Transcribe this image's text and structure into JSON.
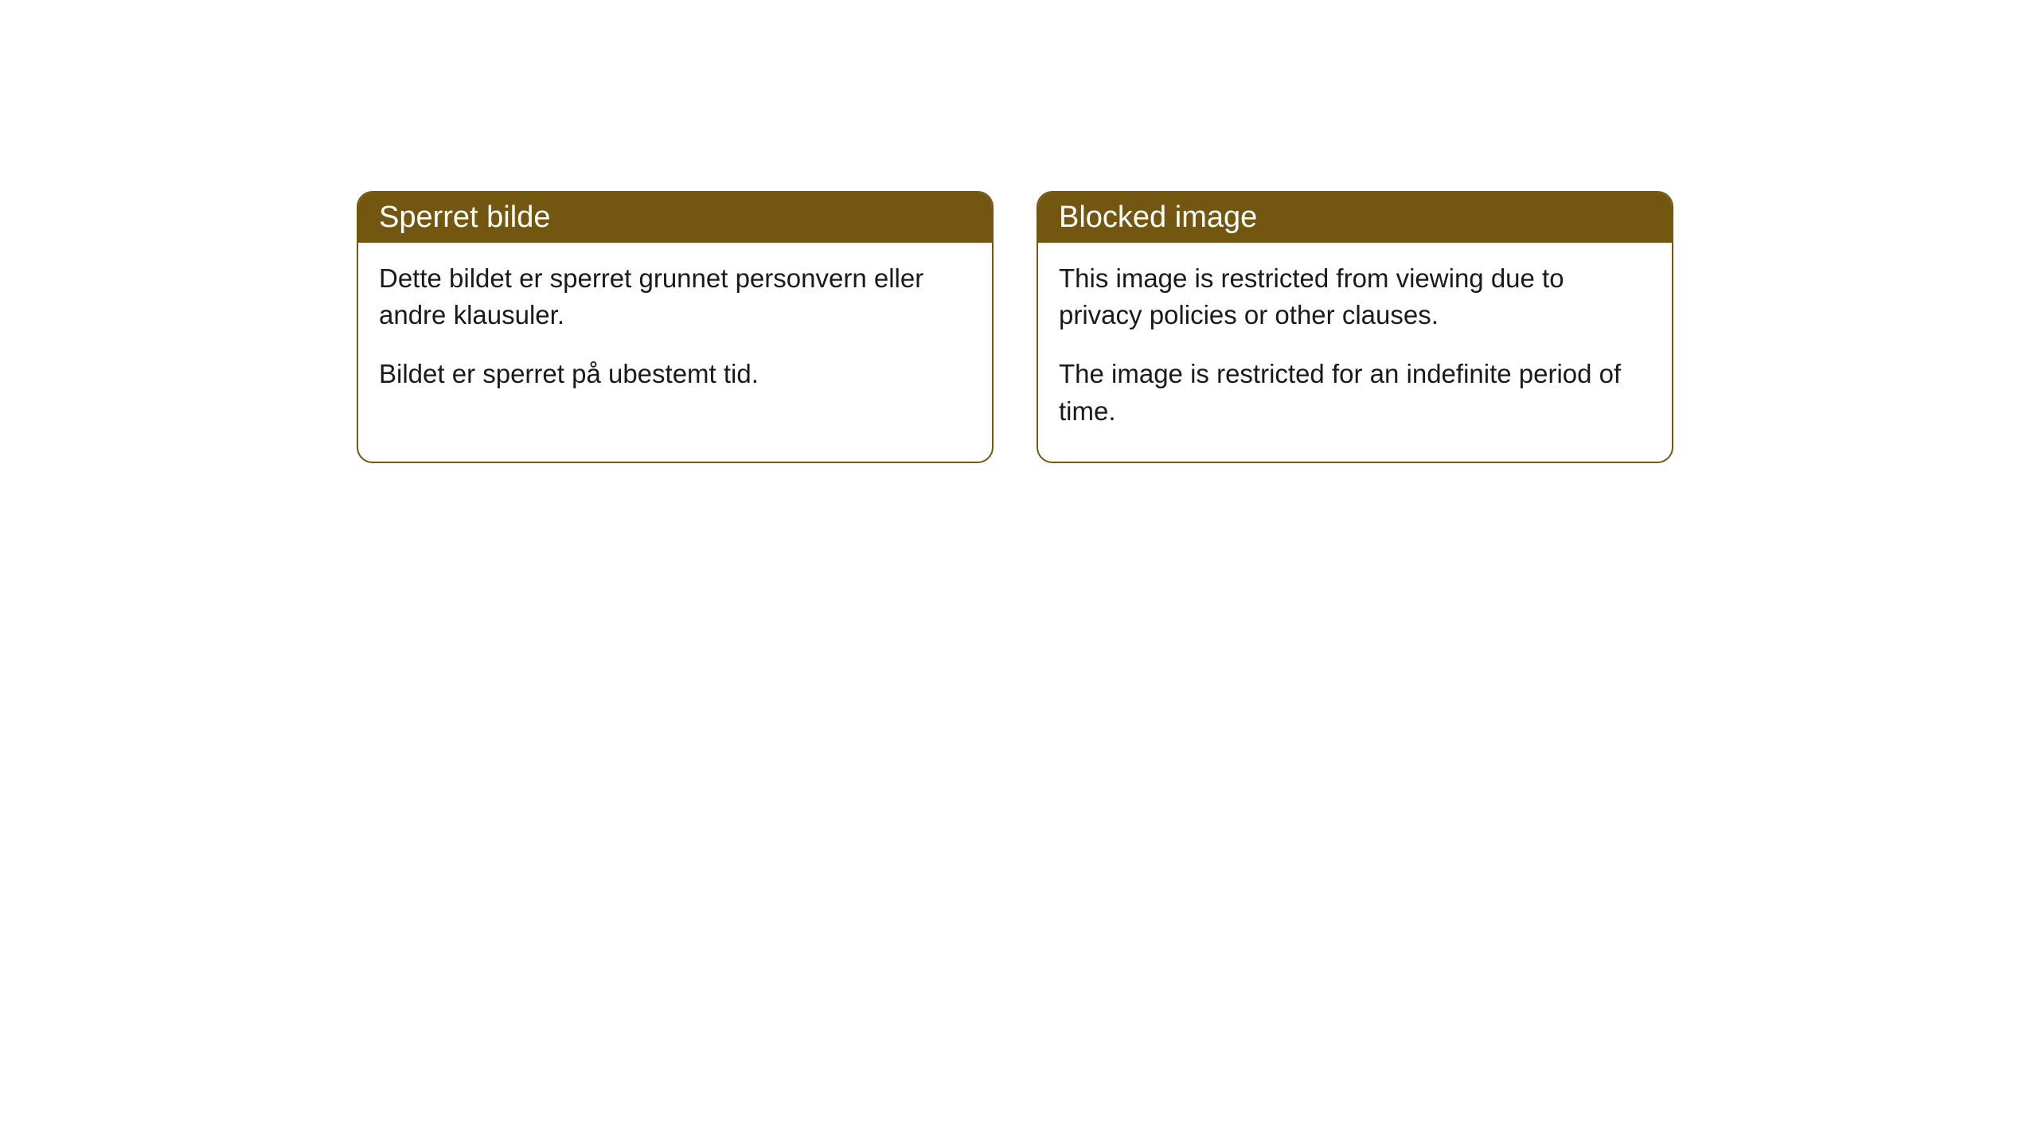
{
  "cards": [
    {
      "title": "Sperret bilde",
      "paragraph1": "Dette bildet er sperret grunnet personvern eller andre klausuler.",
      "paragraph2": "Bildet er sperret på ubestemt tid."
    },
    {
      "title": "Blocked image",
      "paragraph1": "This image is restricted from viewing due to privacy policies or other clauses.",
      "paragraph2": "The image is restricted for an indefinite period of time."
    }
  ],
  "styles": {
    "header_background": "#735610",
    "header_text_color": "#ffffff",
    "border_color": "#735610",
    "body_background": "#ffffff",
    "body_text_color": "#1a1a1a",
    "border_radius": 20,
    "header_fontsize": 38,
    "body_fontsize": 33
  }
}
